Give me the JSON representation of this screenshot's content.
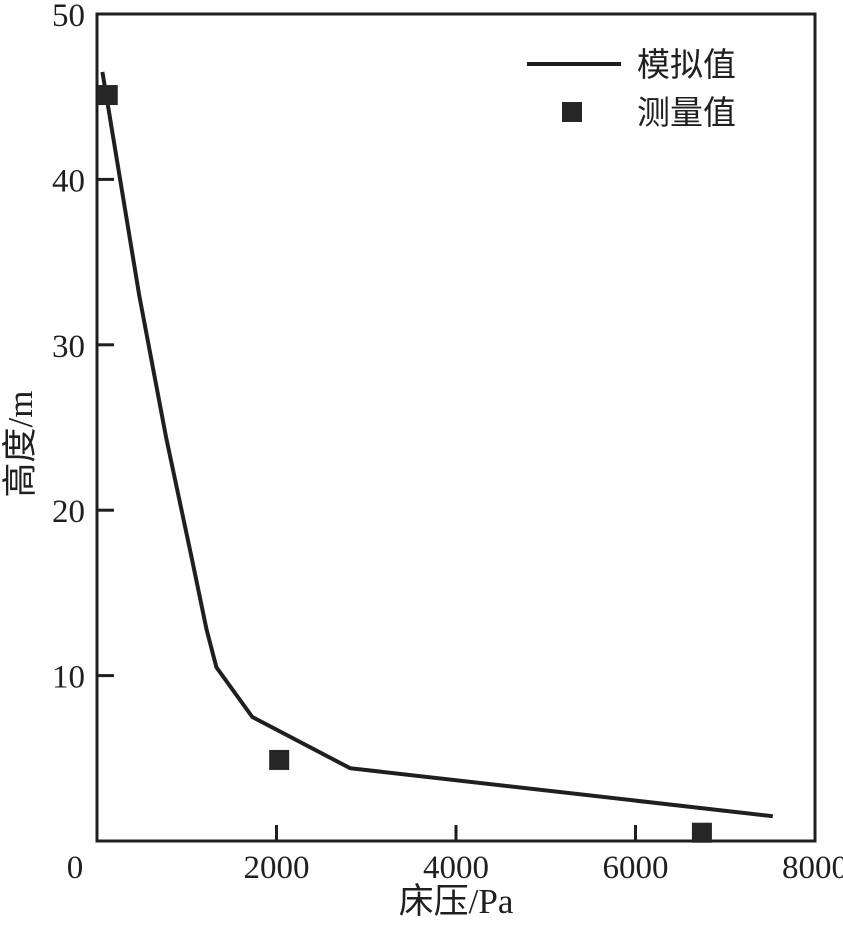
{
  "figure": {
    "background": "#ffffff",
    "ink_color": "#1f1f1f"
  },
  "chart_data": {
    "type": "line",
    "title": "",
    "xlabel": "床压/Pa",
    "ylabel": "高度/m",
    "xlim": [
      0,
      8000
    ],
    "ylim": [
      0,
      50
    ],
    "x_ticks": [
      0,
      2000,
      4000,
      6000,
      8000
    ],
    "y_ticks": [
      10,
      20,
      30,
      40,
      50
    ],
    "grid": false,
    "frame": "full-box",
    "legend_position": "top-right-inside",
    "series": [
      {
        "name": "模拟值",
        "type": "line",
        "color": "#1f1f1f",
        "points": [
          [
            60,
            46.5
          ],
          [
            470,
            33.0
          ],
          [
            770,
            24.4
          ],
          [
            1060,
            17.0
          ],
          [
            1220,
            12.8
          ],
          [
            1330,
            10.5
          ],
          [
            1730,
            7.5
          ],
          [
            2820,
            4.4
          ],
          [
            7530,
            1.5
          ]
        ]
      },
      {
        "name": "测量值",
        "type": "scatter",
        "marker": "square",
        "color": "#262626",
        "points": [
          [
            120,
            45.1
          ],
          [
            2030,
            4.9
          ],
          [
            6740,
            0.5
          ]
        ]
      }
    ]
  }
}
